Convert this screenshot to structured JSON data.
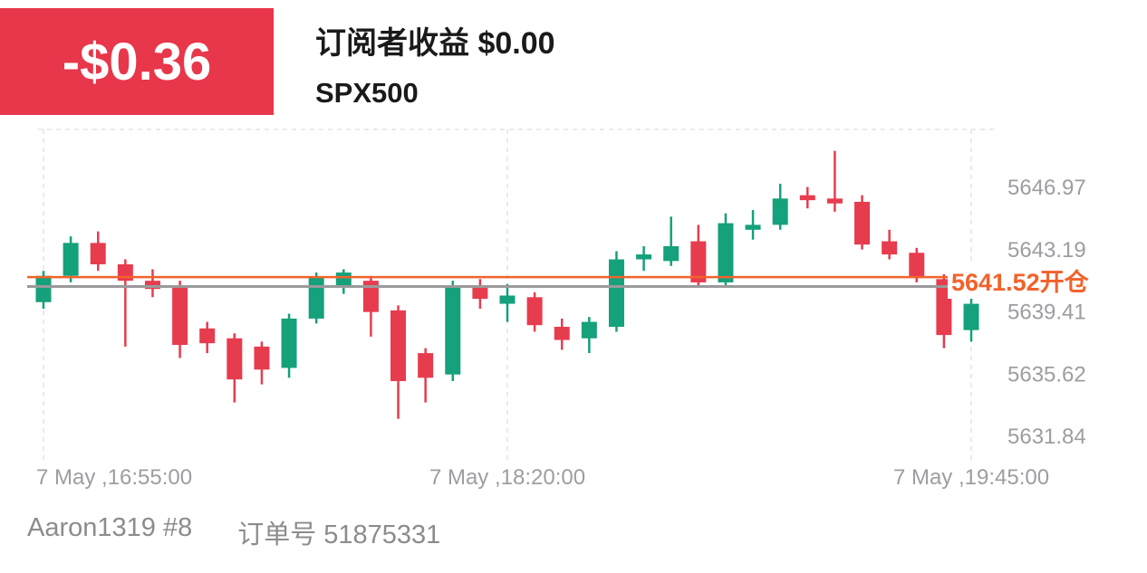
{
  "header": {
    "pnl": "-$0.36",
    "pnl_bg": "#e8364a",
    "subscriber_title": "订阅者收益 $0.00",
    "symbol": "SPX500"
  },
  "footer": {
    "account": "Aaron1319 #8",
    "order": "订单号 51875331"
  },
  "chart_data": {
    "type": "candlestick",
    "symbol": "SPX500",
    "interval_minutes": 5,
    "x_tick_labels": [
      "7 May ,16:55:00",
      "7 May ,18:20:00",
      "7 May ,19:45:00"
    ],
    "x_tick_indices": [
      0,
      17,
      34
    ],
    "y_ticks": [
      5646.97,
      5643.19,
      5639.41,
      5635.62,
      5631.84
    ],
    "ylim": [
      5630.3,
      5650.5
    ],
    "up_color": "#14a17b",
    "down_color": "#e73c4e",
    "grid_color": "#e3e3e3",
    "axis_text_color": "#9d9da2",
    "open_line": {
      "value": 5641.52,
      "label": "5641.52开仓",
      "color": "#f2622b"
    },
    "price_line": {
      "value": 5640.95,
      "color": "#9a9a9a"
    },
    "candles": [
      [
        5640.0,
        5641.9,
        5639.6,
        5641.6
      ],
      [
        5641.6,
        5644.0,
        5641.2,
        5643.6
      ],
      [
        5643.6,
        5644.3,
        5641.9,
        5642.3
      ],
      [
        5642.3,
        5642.6,
        5637.3,
        5641.3
      ],
      [
        5641.3,
        5642.0,
        5640.3,
        5640.8
      ],
      [
        5641.0,
        5641.3,
        5636.6,
        5637.4
      ],
      [
        5638.4,
        5638.8,
        5636.9,
        5637.5
      ],
      [
        5637.8,
        5638.1,
        5633.9,
        5635.3
      ],
      [
        5637.3,
        5637.6,
        5635.0,
        5635.9
      ],
      [
        5636.0,
        5639.3,
        5635.4,
        5639.0
      ],
      [
        5639.0,
        5641.8,
        5638.7,
        5641.5
      ],
      [
        5640.9,
        5642.0,
        5640.5,
        5641.8
      ],
      [
        5641.3,
        5641.6,
        5637.9,
        5639.4
      ],
      [
        5639.5,
        5639.8,
        5632.9,
        5635.2
      ],
      [
        5636.9,
        5637.2,
        5633.9,
        5635.4
      ],
      [
        5635.6,
        5641.3,
        5635.2,
        5640.9
      ],
      [
        5640.9,
        5641.4,
        5639.6,
        5640.2
      ],
      [
        5639.9,
        5641.1,
        5638.8,
        5640.4
      ],
      [
        5640.3,
        5640.6,
        5638.2,
        5638.6
      ],
      [
        5638.5,
        5639.0,
        5637.1,
        5637.7
      ],
      [
        5637.8,
        5639.1,
        5636.9,
        5638.8
      ],
      [
        5638.5,
        5643.1,
        5638.2,
        5642.6
      ],
      [
        5642.6,
        5643.4,
        5641.9,
        5642.9
      ],
      [
        5642.5,
        5645.2,
        5642.2,
        5643.4
      ],
      [
        5643.7,
        5644.7,
        5640.9,
        5641.2
      ],
      [
        5641.2,
        5645.4,
        5641.0,
        5644.8
      ],
      [
        5644.4,
        5645.6,
        5643.8,
        5644.7
      ],
      [
        5644.7,
        5647.2,
        5644.4,
        5646.3
      ],
      [
        5646.5,
        5647.0,
        5645.7,
        5646.2
      ],
      [
        5646.3,
        5649.2,
        5645.5,
        5646.0
      ],
      [
        5646.1,
        5646.5,
        5643.2,
        5643.5
      ],
      [
        5643.7,
        5644.4,
        5642.6,
        5642.9
      ],
      [
        5643.0,
        5643.3,
        5641.2,
        5641.5
      ],
      [
        5641.4,
        5641.7,
        5637.2,
        5638.0
      ],
      [
        5638.3,
        5640.4,
        5637.6,
        5639.9
      ]
    ]
  }
}
